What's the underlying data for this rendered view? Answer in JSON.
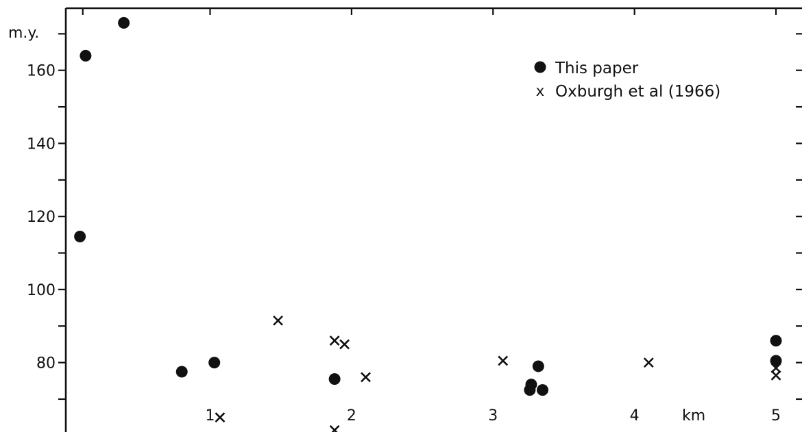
{
  "chart_data": {
    "type": "scatter",
    "title": "",
    "xlabel": "km",
    "ylabel": "m.y.",
    "xlim": [
      -0.02,
      5.15
    ],
    "ylim": [
      61,
      177
    ],
    "x_ticks": [
      1,
      2,
      3,
      4,
      5
    ],
    "x_tick_labels": [
      "1",
      "2",
      "3",
      "4",
      "5"
    ],
    "y_ticks": [
      80,
      100,
      120,
      140,
      160
    ],
    "y_tick_labels": [
      "80",
      "100",
      "120",
      "140",
      "160"
    ],
    "grid": false,
    "legend_position": "top-right",
    "series": [
      {
        "name": "This paper",
        "marker": "filled-circle",
        "points": [
          {
            "x": 0.08,
            "y": 114.5
          },
          {
            "x": 0.12,
            "y": 164
          },
          {
            "x": 0.39,
            "y": 173
          },
          {
            "x": 0.8,
            "y": 77.5
          },
          {
            "x": 1.03,
            "y": 80
          },
          {
            "x": 1.88,
            "y": 75.5
          },
          {
            "x": 3.26,
            "y": 72.5
          },
          {
            "x": 3.27,
            "y": 74
          },
          {
            "x": 3.32,
            "y": 79
          },
          {
            "x": 3.35,
            "y": 72.5
          },
          {
            "x": 5.0,
            "y": 80.5
          },
          {
            "x": 5.0,
            "y": 86
          }
        ]
      },
      {
        "name": "Oxburgh et al (1966)",
        "marker": "x",
        "points": [
          {
            "x": 1.07,
            "y": 65
          },
          {
            "x": 1.48,
            "y": 91.5
          },
          {
            "x": 1.88,
            "y": 61.5
          },
          {
            "x": 1.88,
            "y": 86
          },
          {
            "x": 1.95,
            "y": 85
          },
          {
            "x": 2.1,
            "y": 76
          },
          {
            "x": 3.07,
            "y": 80.5
          },
          {
            "x": 4.1,
            "y": 80
          },
          {
            "x": 5.0,
            "y": 76.5
          },
          {
            "x": 5.0,
            "y": 78.5
          }
        ]
      }
    ],
    "legend": [
      {
        "label": "This paper",
        "symbol": "●"
      },
      {
        "label": "Oxburgh et al (1966)",
        "symbol": "x"
      }
    ]
  }
}
